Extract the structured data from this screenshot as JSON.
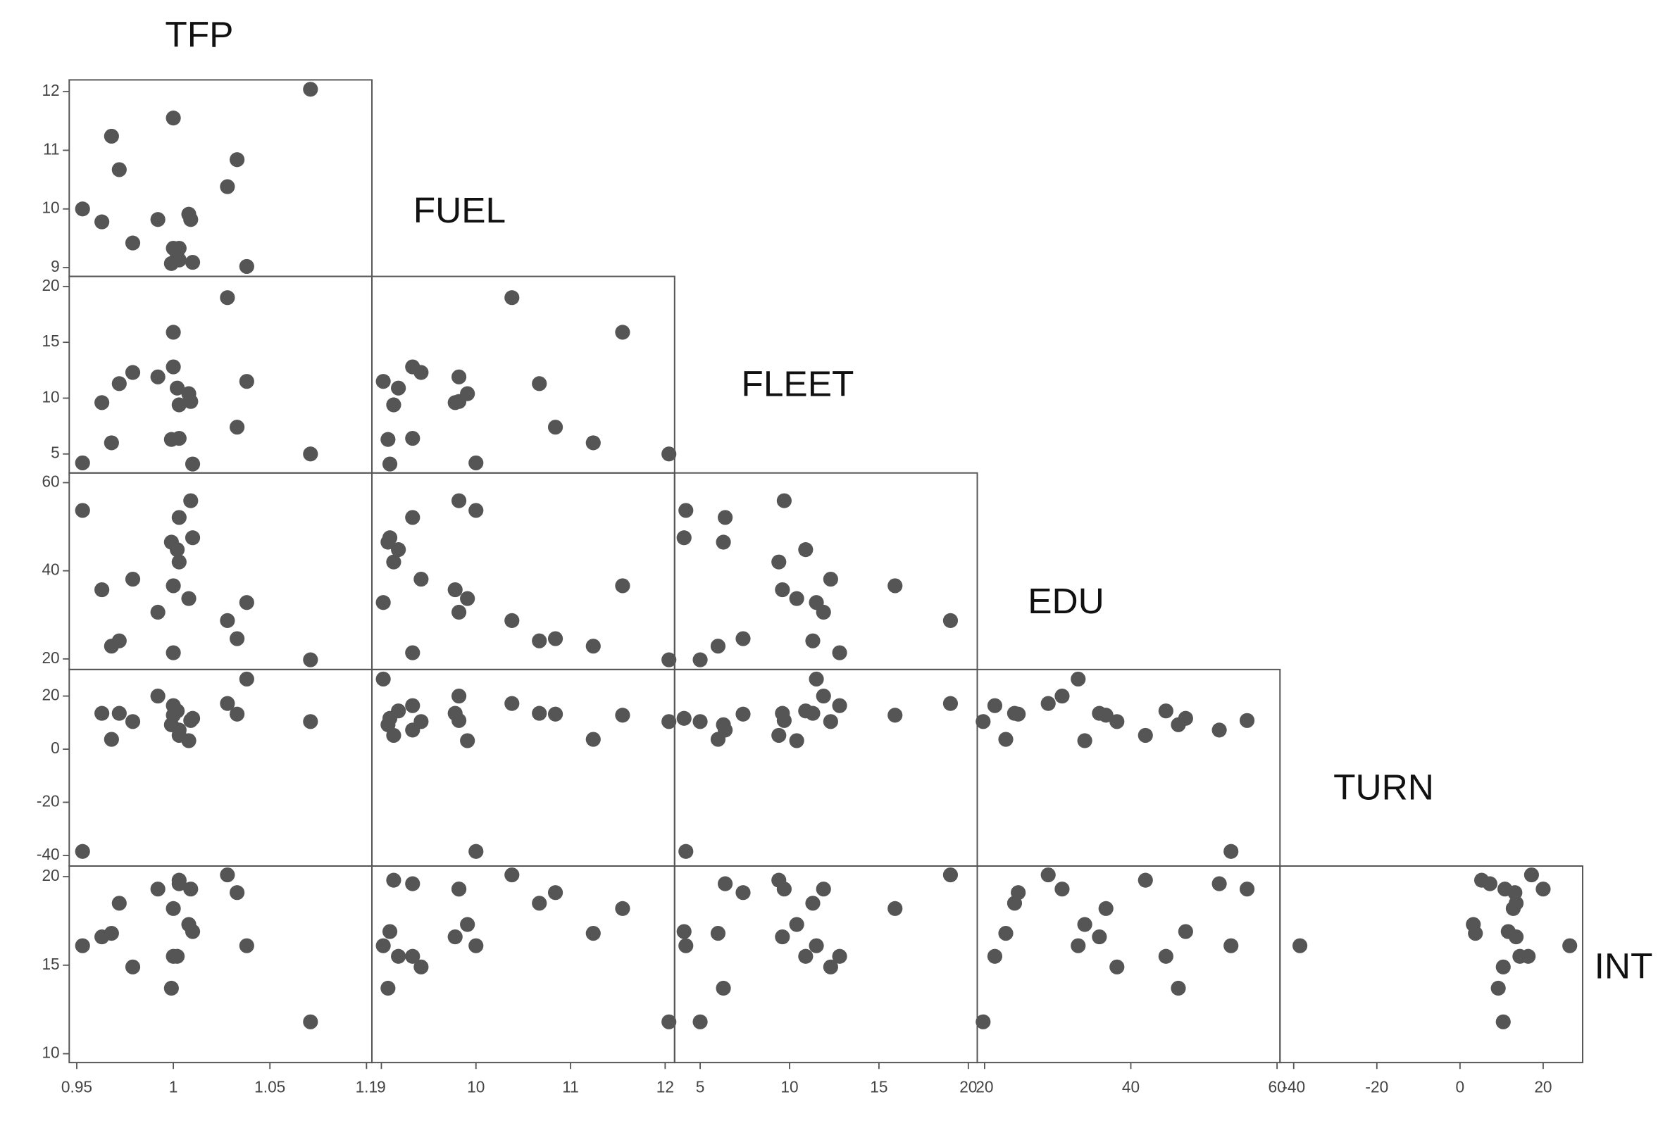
{
  "chart_data": {
    "type": "scatter",
    "color": "#555555",
    "variables": [
      {
        "name": "TFP",
        "xlim": [
          0.9461,
          1.1028
        ],
        "xticks": [
          0.95,
          1,
          1.05,
          1.1
        ],
        "values": [
          0.953,
          0.963,
          0.968,
          0.972,
          0.979,
          0.992,
          1.0,
          1.0,
          0.999,
          1.002,
          1.003,
          1.003,
          1.008,
          1.009,
          1.01,
          1.028,
          1.033,
          1.038,
          1.071
        ]
      },
      {
        "name": "FUEL",
        "xlim": [
          8.9,
          12.1
        ],
        "xticks": [
          9,
          10,
          11,
          12
        ],
        "ylim": [
          8.85,
          12.2
        ],
        "yticks": [
          9,
          10,
          11,
          12
        ],
        "values": [
          10.0,
          9.78,
          11.24,
          10.67,
          9.42,
          9.82,
          11.55,
          9.33,
          9.07,
          9.18,
          9.13,
          9.33,
          9.91,
          9.82,
          9.09,
          10.38,
          10.84,
          9.02,
          12.04
        ]
      },
      {
        "name": "FLEET",
        "xlim": [
          3.57,
          20.5
        ],
        "xticks": [
          5,
          10,
          15,
          20
        ],
        "ylim": [
          3.3,
          20.9
        ],
        "yticks": [
          5,
          10,
          15,
          20
        ],
        "values": [
          4.2,
          9.6,
          6.0,
          11.3,
          12.3,
          11.9,
          15.9,
          12.8,
          6.3,
          10.9,
          9.4,
          6.4,
          10.4,
          9.7,
          4.1,
          19.0,
          7.4,
          11.5,
          5.0
        ]
      },
      {
        "name": "EDU",
        "xlim": [
          19.0,
          60.4
        ],
        "xticks": [
          20,
          40,
          60
        ],
        "ylim": [
          17.6,
          62.2
        ],
        "yticks": [
          20,
          40,
          60
        ],
        "values": [
          53.7,
          35.7,
          22.9,
          24.1,
          38.1,
          30.6,
          36.6,
          21.4,
          46.5,
          44.8,
          42.0,
          52.1,
          33.7,
          55.9,
          47.5,
          28.7,
          24.6,
          32.8,
          19.8
        ]
      },
      {
        "name": "TURN",
        "xlim": [
          -43.3,
          29.5
        ],
        "xticks": [
          -40,
          -20,
          0,
          20
        ],
        "ylim": [
          -44,
          30
        ],
        "yticks": [
          -40,
          -20,
          0,
          20
        ],
        "values": [
          -38.5,
          13.5,
          3.7,
          13.5,
          10.4,
          20.0,
          12.8,
          16.4,
          9.2,
          14.4,
          5.2,
          7.2,
          3.2,
          10.8,
          11.6,
          17.2,
          13.2,
          26.4,
          10.4
        ]
      },
      {
        "name": "INT",
        "ylim": [
          9.5,
          20.6
        ],
        "yticks": [
          10,
          15,
          20
        ],
        "values": [
          16.1,
          16.6,
          16.8,
          18.5,
          14.9,
          19.3,
          18.2,
          15.5,
          13.7,
          15.5,
          19.8,
          19.6,
          17.3,
          19.3,
          16.9,
          20.1,
          19.1,
          16.1,
          11.8
        ]
      }
    ]
  }
}
